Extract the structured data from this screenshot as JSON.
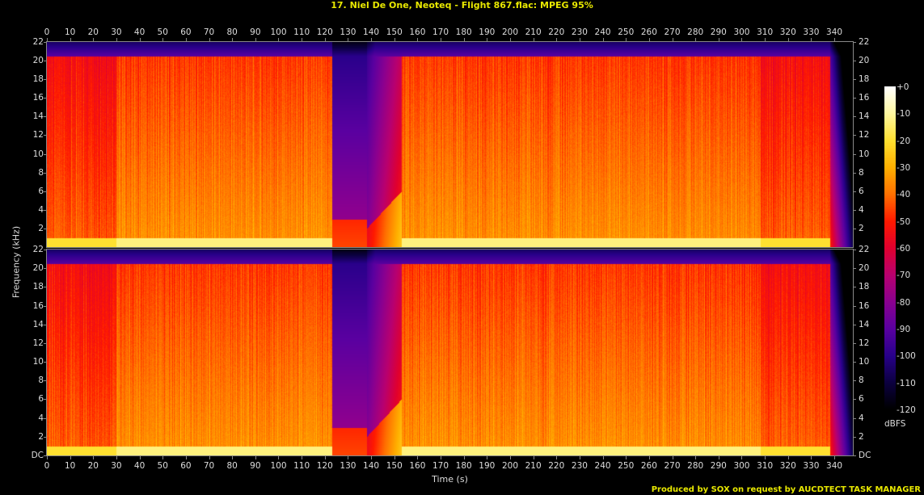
{
  "title": "17. Niel De One, Neoteq - Flight 867.flac: MPEG 95%",
  "credit": "Produced by SOX on request by AUCDTECT TASK MANAGER",
  "chart_data": {
    "type": "heatmap",
    "title": "17. Niel De One, Neoteq - Flight 867.flac: MPEG 95%",
    "xlabel": "Time (s)",
    "ylabel": "Frequency (kHz)",
    "xlim": [
      0,
      348
    ],
    "ylim": [
      0,
      22
    ],
    "x_ticks": [
      "0",
      "10",
      "20",
      "30",
      "40",
      "50",
      "60",
      "70",
      "80",
      "90",
      "100",
      "110",
      "120",
      "130",
      "140",
      "150",
      "160",
      "170",
      "180",
      "190",
      "200",
      "210",
      "220",
      "230",
      "240",
      "250",
      "260",
      "270",
      "280",
      "290",
      "300",
      "310",
      "320",
      "330",
      "340"
    ],
    "y_ticks": [
      "DC",
      "2",
      "4",
      "6",
      "8",
      "10",
      "12",
      "14",
      "16",
      "18",
      "20",
      "22"
    ],
    "channels": 2,
    "colorbar": {
      "label": "dBFS",
      "ticks": [
        "+0",
        "-10",
        "-20",
        "-30",
        "-40",
        "-50",
        "-60",
        "-70",
        "-80",
        "-90",
        "-100",
        "-110",
        "-120"
      ],
      "range": [
        -120,
        0
      ],
      "colors": [
        "#ffffff",
        "#fff8a0",
        "#ffe030",
        "#ffb000",
        "#ff7000",
        "#ff1a00",
        "#e00030",
        "#b80070",
        "#8a0090",
        "#5a00a0",
        "#28008a",
        "#0c0040",
        "#000000"
      ]
    },
    "cutoff_khz": 20.5,
    "segments_approx_dbfs": [
      {
        "start": 0,
        "end": 30,
        "level": -45
      },
      {
        "start": 30,
        "end": 123,
        "level": -38
      },
      {
        "start": 123,
        "end": 138,
        "level": -85
      },
      {
        "start": 138,
        "end": 153,
        "level": -70
      },
      {
        "start": 153,
        "end": 308,
        "level": -38
      },
      {
        "start": 308,
        "end": 338,
        "level": -45
      },
      {
        "start": 338,
        "end": 348,
        "level": -90
      }
    ]
  }
}
